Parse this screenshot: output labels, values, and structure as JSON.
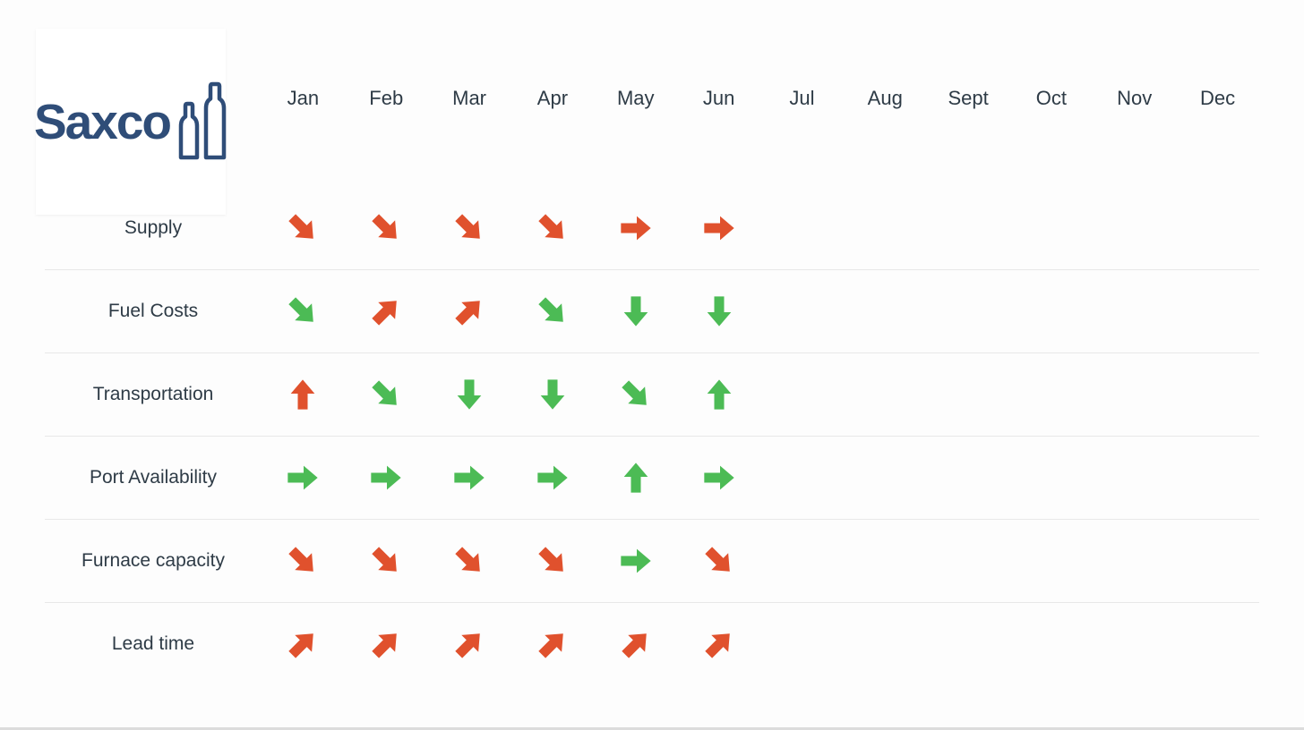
{
  "logo": {
    "text": "Saxco",
    "brand_color": "#2F4D78",
    "bottles_icon": "two-bottle-outlines"
  },
  "colors": {
    "negative": "#E0512D",
    "positive": "#4CBB55",
    "text": "#2E3B46",
    "divider": "#E8E8E8",
    "background": "#FDFDFD"
  },
  "chart_data": {
    "type": "table",
    "description": "Supply-chain monthly trend matrix; each cell is a directional arrow icon colored by sentiment (red = negative, green = positive). Only Jan-Jun are populated.",
    "columns": [
      "Jan",
      "Feb",
      "Mar",
      "Apr",
      "May",
      "Jun",
      "Jul",
      "Aug",
      "Sept",
      "Oct",
      "Nov",
      "Dec"
    ],
    "rows": [
      {
        "label": "Supply",
        "cells": [
          {
            "month": "Jan",
            "arrow": "down-right",
            "sentiment": "negative"
          },
          {
            "month": "Feb",
            "arrow": "down-right",
            "sentiment": "negative"
          },
          {
            "month": "Mar",
            "arrow": "down-right",
            "sentiment": "negative"
          },
          {
            "month": "Apr",
            "arrow": "down-right",
            "sentiment": "negative"
          },
          {
            "month": "May",
            "arrow": "right",
            "sentiment": "negative"
          },
          {
            "month": "Jun",
            "arrow": "right",
            "sentiment": "negative"
          }
        ]
      },
      {
        "label": "Fuel Costs",
        "cells": [
          {
            "month": "Jan",
            "arrow": "down-right",
            "sentiment": "positive"
          },
          {
            "month": "Feb",
            "arrow": "up-right",
            "sentiment": "negative"
          },
          {
            "month": "Mar",
            "arrow": "up-right",
            "sentiment": "negative"
          },
          {
            "month": "Apr",
            "arrow": "down-right",
            "sentiment": "positive"
          },
          {
            "month": "May",
            "arrow": "down",
            "sentiment": "positive"
          },
          {
            "month": "Jun",
            "arrow": "down",
            "sentiment": "positive"
          }
        ]
      },
      {
        "label": "Transportation",
        "cells": [
          {
            "month": "Jan",
            "arrow": "up",
            "sentiment": "negative"
          },
          {
            "month": "Feb",
            "arrow": "down-right",
            "sentiment": "positive"
          },
          {
            "month": "Mar",
            "arrow": "down",
            "sentiment": "positive"
          },
          {
            "month": "Apr",
            "arrow": "down",
            "sentiment": "positive"
          },
          {
            "month": "May",
            "arrow": "down-right",
            "sentiment": "positive"
          },
          {
            "month": "Jun",
            "arrow": "up",
            "sentiment": "positive"
          }
        ]
      },
      {
        "label": "Port Availability",
        "cells": [
          {
            "month": "Jan",
            "arrow": "right",
            "sentiment": "positive"
          },
          {
            "month": "Feb",
            "arrow": "right",
            "sentiment": "positive"
          },
          {
            "month": "Mar",
            "arrow": "right",
            "sentiment": "positive"
          },
          {
            "month": "Apr",
            "arrow": "right",
            "sentiment": "positive"
          },
          {
            "month": "May",
            "arrow": "up",
            "sentiment": "positive"
          },
          {
            "month": "Jun",
            "arrow": "right",
            "sentiment": "positive"
          }
        ]
      },
      {
        "label": "Furnace capacity",
        "cells": [
          {
            "month": "Jan",
            "arrow": "down-right",
            "sentiment": "negative"
          },
          {
            "month": "Feb",
            "arrow": "down-right",
            "sentiment": "negative"
          },
          {
            "month": "Mar",
            "arrow": "down-right",
            "sentiment": "negative"
          },
          {
            "month": "Apr",
            "arrow": "down-right",
            "sentiment": "negative"
          },
          {
            "month": "May",
            "arrow": "right",
            "sentiment": "positive"
          },
          {
            "month": "Jun",
            "arrow": "down-right",
            "sentiment": "negative"
          }
        ]
      },
      {
        "label": "Lead time",
        "cells": [
          {
            "month": "Jan",
            "arrow": "up-right",
            "sentiment": "negative"
          },
          {
            "month": "Feb",
            "arrow": "up-right",
            "sentiment": "negative"
          },
          {
            "month": "Mar",
            "arrow": "up-right",
            "sentiment": "negative"
          },
          {
            "month": "Apr",
            "arrow": "up-right",
            "sentiment": "negative"
          },
          {
            "month": "May",
            "arrow": "up-right",
            "sentiment": "negative"
          },
          {
            "month": "Jun",
            "arrow": "up-right",
            "sentiment": "negative"
          }
        ]
      }
    ]
  }
}
